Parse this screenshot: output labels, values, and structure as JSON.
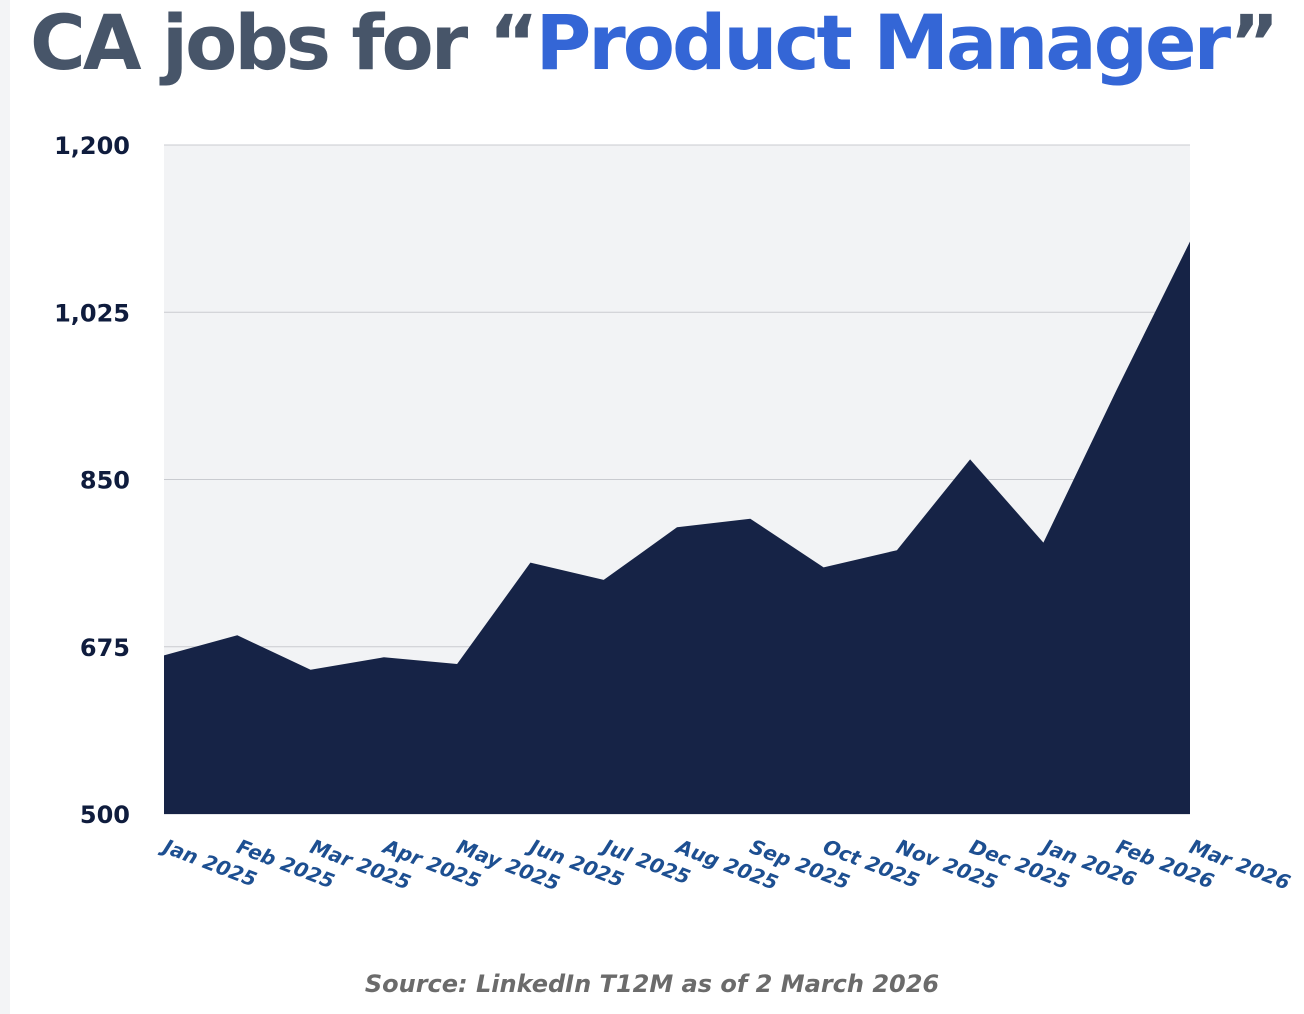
{
  "title": {
    "prefix": "CA jobs for ",
    "open_quote": "“",
    "highlight": "Product Manager",
    "close_quote": "”"
  },
  "colors": {
    "title_gray": "#475569",
    "title_highlight": "#3466d6",
    "area_fill": "#162346",
    "plot_background": "#f2f3f5",
    "gridline": "#c9cbd0",
    "ytick": "#0f1c3d",
    "xtick": "#1d4f91",
    "source_text": "#6b6b6b"
  },
  "chart_data": {
    "type": "area",
    "title": "CA jobs for “Product Manager”",
    "xlabel": "",
    "ylabel": "",
    "categories": [
      "Jan 2025",
      "Feb 2025",
      "Mar 2025",
      "Apr 2025",
      "May 2025",
      "Jun 2025",
      "Jul 2025",
      "Aug 2025",
      "Sep 2025",
      "Oct 2025",
      "Nov 2025",
      "Dec 2025",
      "Jan 2026",
      "Feb 2026",
      "Mar 2026"
    ],
    "series": [
      {
        "values": [
          666,
          687,
          651,
          664,
          657,
          763,
          745,
          800,
          809,
          758,
          776,
          871,
          784,
          944,
          1099
        ]
      }
    ],
    "ylim": [
      500,
      1200
    ],
    "yticks": [
      500,
      675,
      850,
      1025,
      1200
    ],
    "ytick_labels": [
      "500",
      "675",
      "850",
      "1,025",
      "1,200"
    ],
    "grid": true,
    "legend": "none"
  },
  "source": "Source: LinkedIn T12M as of 2 March 2026"
}
